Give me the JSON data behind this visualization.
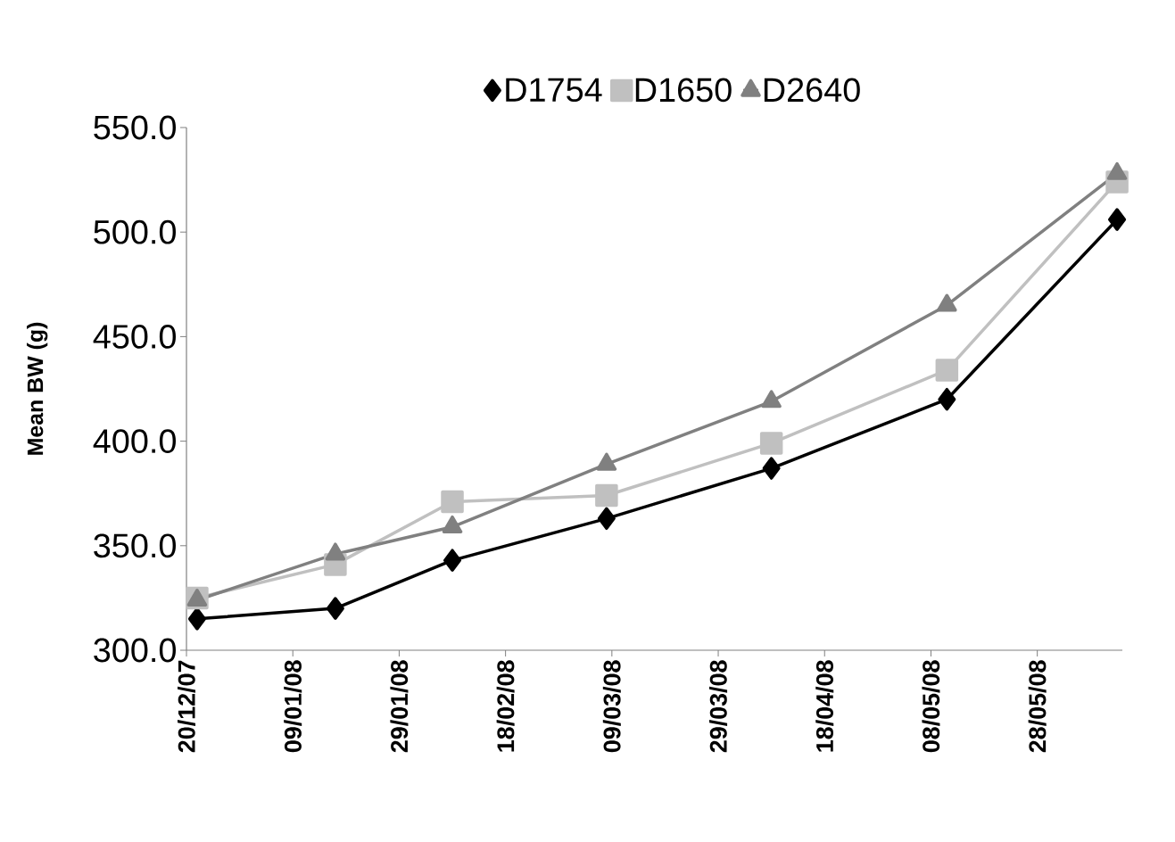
{
  "chart_data": {
    "type": "line",
    "ylabel": "Mean BW (g)",
    "x": [
      "2007-12-22",
      "2008-01-17",
      "2008-02-08",
      "2008-03-08",
      "2008-04-08",
      "2008-05-11",
      "2008-06-12"
    ],
    "series": [
      {
        "name": "D1754",
        "color": "#000000",
        "marker": "diamond",
        "values": [
          315,
          320,
          343,
          363,
          387,
          420,
          506
        ]
      },
      {
        "name": "D1650",
        "color": "#c0c0c0",
        "marker": "square",
        "values": [
          325,
          341,
          371,
          374,
          399,
          434,
          524
        ]
      },
      {
        "name": "D2640",
        "color": "#808080",
        "marker": "triangle",
        "values": [
          324,
          346,
          359,
          389,
          419,
          465,
          528
        ]
      }
    ],
    "xlim": [
      "2007-12-20",
      "2008-06-13"
    ],
    "xticks": [
      {
        "value": "2007-12-20",
        "label": "20/12/07"
      },
      {
        "value": "2008-01-09",
        "label": "09/01/08"
      },
      {
        "value": "2008-01-29",
        "label": "29/01/08"
      },
      {
        "value": "2008-02-18",
        "label": "18/02/08"
      },
      {
        "value": "2008-03-09",
        "label": "09/03/08"
      },
      {
        "value": "2008-03-29",
        "label": "29/03/08"
      },
      {
        "value": "2008-04-18",
        "label": "18/04/08"
      },
      {
        "value": "2008-05-08",
        "label": "08/05/08"
      },
      {
        "value": "2008-05-28",
        "label": "28/05/08"
      }
    ],
    "ylim": [
      300,
      550
    ],
    "yticks": [
      {
        "value": 300,
        "label": "300.0"
      },
      {
        "value": 350,
        "label": "350.0"
      },
      {
        "value": 400,
        "label": "400.0"
      },
      {
        "value": 450,
        "label": "450.0"
      },
      {
        "value": 500,
        "label": "500.0"
      },
      {
        "value": 550,
        "label": "550.0"
      }
    ],
    "legend": "top",
    "grid": false,
    "line_style": "solid"
  }
}
